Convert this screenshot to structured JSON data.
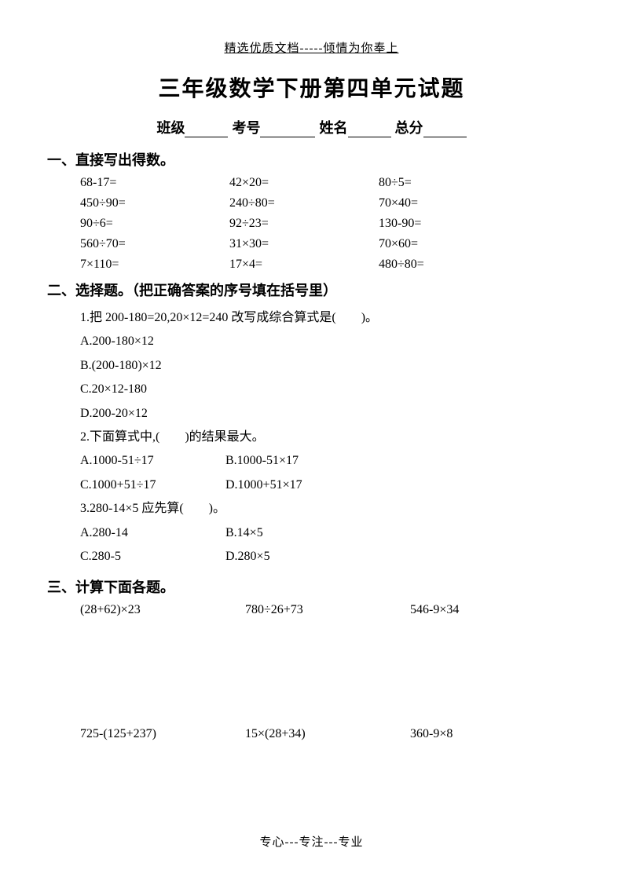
{
  "header": "精选优质文档-----倾情为你奉上",
  "title": "三年级数学下册第四单元试题",
  "info": {
    "class_label": "班级",
    "exam_id_label": "考号",
    "name_label": "姓名",
    "total_label": "总分"
  },
  "section1": {
    "heading": "一、直接写出得数。",
    "rows": [
      [
        "68-17=",
        "42×20=",
        "80÷5="
      ],
      [
        "450÷90=",
        "240÷80=",
        "70×40="
      ],
      [
        "90÷6=",
        "92÷23=",
        "130-90="
      ],
      [
        "560÷70=",
        "31×30=",
        "70×60="
      ],
      [
        "7×110=",
        "17×4=",
        "480÷80="
      ]
    ]
  },
  "section2": {
    "heading": "二、选择题。（把正确答案的序号填在括号里）",
    "q1": {
      "text": "1.把 200-180=20,20×12=240 改写成综合算式是(　　)。",
      "optA": "A.200-180×12",
      "optB": "B.(200-180)×12",
      "optC": "C.20×12-180",
      "optD": "D.200-20×12"
    },
    "q2": {
      "text": "2.下面算式中,(　　)的结果最大。",
      "optA": "A.1000-51÷17",
      "optB": "B.1000-51×17",
      "optC": "C.1000+51÷17",
      "optD": "D.1000+51×17"
    },
    "q3": {
      "text": "3.280-14×5 应先算(　　)。",
      "optA": "A.280-14",
      "optB": "B.14×5",
      "optC": "C.280-5",
      "optD": "D.280×5"
    }
  },
  "section3": {
    "heading": "三、计算下面各题。",
    "rows": [
      [
        "(28+62)×23",
        "780÷26+73",
        "546-9×34"
      ],
      [
        "725-(125+237)",
        "15×(28+34)",
        "360-9×8"
      ]
    ]
  },
  "footer": "专心---专注---专业"
}
